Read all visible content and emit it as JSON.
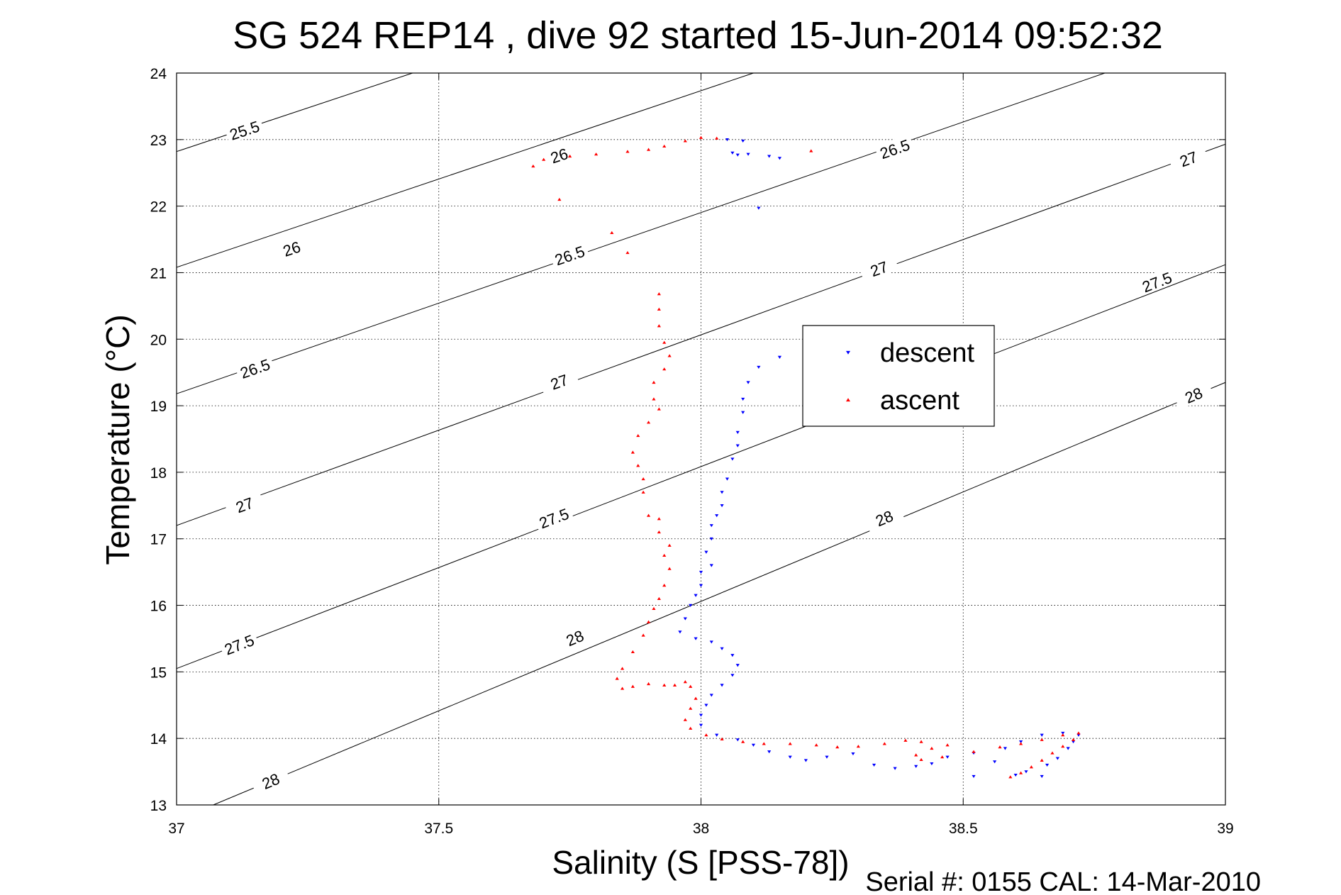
{
  "chart_data": {
    "type": "scatter",
    "title": "SG 524   REP14  , dive 92 started 15-Jun-2014 09:52:32",
    "xlabel": "Salinity (S [PSS-78])",
    "ylabel": "Temperature (°C)",
    "footer": "Serial #: 0155  CAL: 14-Mar-2010",
    "xlim": [
      37,
      39
    ],
    "ylim": [
      13,
      24
    ],
    "x_ticks": [
      "37",
      "37.5",
      "38",
      "38.5",
      "39"
    ],
    "y_ticks": [
      "13",
      "14",
      "15",
      "16",
      "17",
      "18",
      "19",
      "20",
      "21",
      "22",
      "23",
      "24"
    ],
    "grid": true,
    "legend_position": "right-center",
    "isopycnals": [
      {
        "label": "25.5",
        "points": [
          [
            37.0,
            22.82
          ],
          [
            37.45,
            24.0
          ]
        ],
        "label_at": [
          37.13,
          23.13
        ]
      },
      {
        "label": "26",
        "points": [
          [
            37.0,
            21.08
          ],
          [
            38.1,
            24.0
          ]
        ],
        "label_at": [
          37.22,
          21.35
        ]
      },
      {
        "label": "26",
        "label_at": [
          37.73,
          22.75
        ]
      },
      {
        "label": "26.5",
        "points": [
          [
            37.0,
            19.18
          ],
          [
            38.77,
            24.0
          ]
        ],
        "label_at": [
          37.15,
          19.55
        ]
      },
      {
        "label": "26.5",
        "label_at": [
          37.75,
          21.25
        ]
      },
      {
        "label": "26.5",
        "label_at": [
          38.37,
          22.85
        ]
      },
      {
        "label": "27",
        "points": [
          [
            37.0,
            17.2
          ],
          [
            39.0,
            22.93
          ]
        ],
        "label_at": [
          37.13,
          17.5
        ]
      },
      {
        "label": "27",
        "label_at": [
          37.73,
          19.35
        ]
      },
      {
        "label": "27",
        "label_at": [
          38.34,
          21.05
        ]
      },
      {
        "label": "27",
        "label_at": [
          38.93,
          22.7
        ]
      },
      {
        "label": "27.5",
        "points": [
          [
            37.0,
            15.05
          ],
          [
            39.0,
            21.12
          ]
        ],
        "label_at": [
          37.12,
          15.4
        ]
      },
      {
        "label": "27.5",
        "label_at": [
          37.72,
          17.3
        ]
      },
      {
        "label": "27.5",
        "label_at": [
          38.87,
          20.85
        ]
      },
      {
        "label": "28",
        "points": [
          [
            37.07,
            13.0
          ],
          [
            39.0,
            19.35
          ]
        ],
        "label_at": [
          37.18,
          13.35
        ]
      },
      {
        "label": "28",
        "label_at": [
          37.76,
          15.5
        ]
      },
      {
        "label": "28",
        "label_at": [
          38.35,
          17.3
        ]
      },
      {
        "label": "28",
        "label_at": [
          38.94,
          19.15
        ]
      }
    ],
    "series": [
      {
        "name": "descent",
        "color": "#0000ff",
        "marker": "triangle-down",
        "points": [
          [
            38.05,
            23.0
          ],
          [
            38.08,
            22.98
          ],
          [
            38.06,
            22.8
          ],
          [
            38.07,
            22.77
          ],
          [
            38.09,
            22.78
          ],
          [
            38.13,
            22.75
          ],
          [
            38.15,
            22.72
          ],
          [
            38.11,
            21.97
          ],
          [
            38.15,
            19.73
          ],
          [
            38.11,
            19.58
          ],
          [
            38.09,
            19.35
          ],
          [
            38.08,
            19.1
          ],
          [
            38.08,
            18.9
          ],
          [
            38.07,
            18.6
          ],
          [
            38.07,
            18.4
          ],
          [
            38.06,
            18.2
          ],
          [
            38.05,
            17.9
          ],
          [
            38.04,
            17.7
          ],
          [
            38.04,
            17.5
          ],
          [
            38.03,
            17.35
          ],
          [
            38.02,
            17.2
          ],
          [
            38.02,
            17.0
          ],
          [
            38.01,
            16.8
          ],
          [
            38.02,
            16.6
          ],
          [
            38.0,
            16.5
          ],
          [
            38.0,
            16.3
          ],
          [
            37.99,
            16.15
          ],
          [
            37.98,
            16.0
          ],
          [
            37.97,
            15.8
          ],
          [
            37.96,
            15.6
          ],
          [
            37.99,
            15.5
          ],
          [
            38.02,
            15.45
          ],
          [
            38.04,
            15.35
          ],
          [
            38.06,
            15.25
          ],
          [
            38.07,
            15.1
          ],
          [
            38.06,
            14.95
          ],
          [
            38.04,
            14.8
          ],
          [
            38.02,
            14.65
          ],
          [
            38.01,
            14.5
          ],
          [
            38.0,
            14.35
          ],
          [
            38.0,
            14.2
          ],
          [
            38.03,
            14.05
          ],
          [
            38.07,
            13.98
          ],
          [
            38.1,
            13.9
          ],
          [
            38.13,
            13.8
          ],
          [
            38.17,
            13.72
          ],
          [
            38.2,
            13.67
          ],
          [
            38.24,
            13.72
          ],
          [
            38.29,
            13.77
          ],
          [
            38.33,
            13.6
          ],
          [
            38.37,
            13.55
          ],
          [
            38.41,
            13.58
          ],
          [
            38.44,
            13.62
          ],
          [
            38.47,
            13.72
          ],
          [
            38.52,
            13.78
          ],
          [
            38.58,
            13.85
          ],
          [
            38.6,
            13.45
          ],
          [
            38.62,
            13.5
          ],
          [
            38.66,
            13.6
          ],
          [
            38.68,
            13.7
          ],
          [
            38.7,
            13.85
          ],
          [
            38.71,
            13.95
          ],
          [
            38.72,
            14.05
          ],
          [
            38.69,
            14.08
          ],
          [
            38.65,
            14.05
          ],
          [
            38.61,
            13.95
          ],
          [
            38.56,
            13.65
          ],
          [
            38.52,
            13.43
          ],
          [
            38.65,
            13.43
          ]
        ]
      },
      {
        "name": "ascent",
        "color": "#ff0000",
        "marker": "triangle-up",
        "points": [
          [
            38.59,
            13.42
          ],
          [
            38.61,
            13.48
          ],
          [
            38.63,
            13.57
          ],
          [
            38.65,
            13.67
          ],
          [
            38.67,
            13.78
          ],
          [
            38.69,
            13.88
          ],
          [
            38.71,
            13.98
          ],
          [
            38.72,
            14.08
          ],
          [
            38.69,
            14.05
          ],
          [
            38.65,
            13.98
          ],
          [
            38.61,
            13.92
          ],
          [
            38.57,
            13.87
          ],
          [
            38.52,
            13.8
          ],
          [
            38.46,
            13.72
          ],
          [
            38.42,
            13.68
          ],
          [
            38.41,
            13.75
          ],
          [
            38.44,
            13.85
          ],
          [
            38.47,
            13.9
          ],
          [
            38.42,
            13.95
          ],
          [
            38.39,
            13.97
          ],
          [
            38.35,
            13.92
          ],
          [
            38.3,
            13.88
          ],
          [
            38.26,
            13.87
          ],
          [
            38.22,
            13.9
          ],
          [
            38.17,
            13.92
          ],
          [
            38.12,
            13.92
          ],
          [
            38.08,
            13.95
          ],
          [
            38.04,
            13.99
          ],
          [
            38.01,
            14.05
          ],
          [
            37.98,
            14.15
          ],
          [
            37.97,
            14.28
          ],
          [
            37.98,
            14.45
          ],
          [
            37.99,
            14.6
          ],
          [
            37.98,
            14.78
          ],
          [
            37.97,
            14.85
          ],
          [
            37.95,
            14.8
          ],
          [
            37.93,
            14.8
          ],
          [
            37.9,
            14.82
          ],
          [
            37.87,
            14.78
          ],
          [
            37.85,
            14.75
          ],
          [
            37.84,
            14.9
          ],
          [
            37.85,
            15.05
          ],
          [
            37.87,
            15.3
          ],
          [
            37.89,
            15.55
          ],
          [
            37.9,
            15.75
          ],
          [
            37.91,
            15.95
          ],
          [
            37.92,
            16.1
          ],
          [
            37.93,
            16.3
          ],
          [
            37.94,
            16.55
          ],
          [
            37.93,
            16.75
          ],
          [
            37.94,
            16.9
          ],
          [
            37.92,
            17.1
          ],
          [
            37.92,
            17.3
          ],
          [
            37.9,
            17.35
          ],
          [
            37.89,
            17.7
          ],
          [
            37.89,
            17.9
          ],
          [
            37.88,
            18.1
          ],
          [
            37.87,
            18.3
          ],
          [
            37.88,
            18.55
          ],
          [
            37.9,
            18.75
          ],
          [
            37.92,
            18.95
          ],
          [
            37.91,
            19.1
          ],
          [
            37.91,
            19.35
          ],
          [
            37.93,
            19.55
          ],
          [
            37.94,
            19.75
          ],
          [
            37.93,
            19.95
          ],
          [
            37.92,
            20.2
          ],
          [
            37.92,
            20.45
          ],
          [
            37.92,
            20.68
          ],
          [
            37.86,
            21.3
          ],
          [
            37.83,
            21.6
          ],
          [
            37.73,
            22.1
          ],
          [
            37.68,
            22.6
          ],
          [
            37.7,
            22.7
          ],
          [
            37.75,
            22.75
          ],
          [
            37.8,
            22.78
          ],
          [
            37.86,
            22.82
          ],
          [
            37.9,
            22.85
          ],
          [
            37.93,
            22.9
          ],
          [
            37.97,
            22.98
          ],
          [
            38.0,
            23.03
          ],
          [
            38.03,
            23.02
          ],
          [
            38.21,
            22.83
          ]
        ]
      }
    ]
  }
}
